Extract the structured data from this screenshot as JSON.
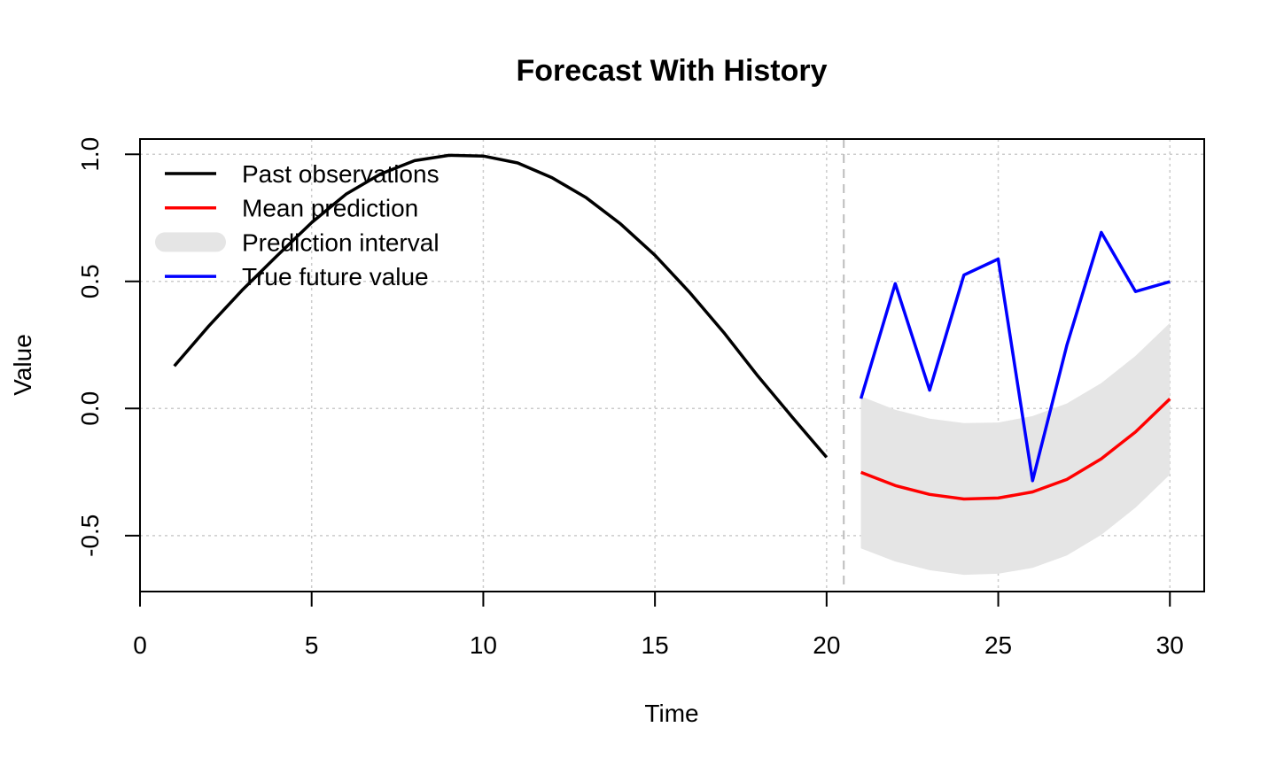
{
  "chart_data": {
    "type": "line",
    "title": "Forecast With History",
    "xlabel": "Time",
    "ylabel": "Value",
    "xlim": [
      0,
      31
    ],
    "ylim": [
      -0.72,
      1.06
    ],
    "xticks": [
      0,
      5,
      10,
      15,
      20,
      25,
      30
    ],
    "yticks": [
      -0.5,
      0.0,
      0.5,
      1.0
    ],
    "xtick_labels": [
      "0",
      "5",
      "10",
      "15",
      "20",
      "25",
      "30"
    ],
    "ytick_labels": [
      "-0.5",
      "0.0",
      "0.5",
      "1.0"
    ],
    "grid": true,
    "forecast_start_marker": 20.5,
    "legend_position": "top-left",
    "series": [
      {
        "name": "Past observations",
        "color": "#000000",
        "x": [
          1,
          2,
          3,
          4,
          5,
          6,
          7,
          8,
          9,
          10,
          11,
          12,
          13,
          14,
          15,
          16,
          17,
          18,
          19,
          20
        ],
        "values": [
          0.167,
          0.324,
          0.469,
          0.602,
          0.731,
          0.843,
          0.922,
          0.975,
          0.996,
          0.993,
          0.966,
          0.908,
          0.829,
          0.726,
          0.603,
          0.458,
          0.3,
          0.127,
          -0.034,
          -0.192
        ]
      },
      {
        "name": "Mean prediction",
        "color": "#ff0000",
        "x": [
          21,
          22,
          23,
          24,
          25,
          26,
          27,
          28,
          29,
          30
        ],
        "values": [
          -0.251,
          -0.303,
          -0.338,
          -0.356,
          -0.352,
          -0.328,
          -0.279,
          -0.198,
          -0.092,
          0.038
        ]
      },
      {
        "name": "Prediction interval",
        "color": "#e5e5e5",
        "x": [
          21,
          22,
          23,
          24,
          25,
          26,
          27,
          28,
          29,
          30
        ],
        "upper": [
          0.048,
          -0.005,
          -0.04,
          -0.057,
          -0.055,
          -0.03,
          0.02,
          0.1,
          0.207,
          0.337
        ],
        "lower": [
          -0.55,
          -0.602,
          -0.636,
          -0.654,
          -0.65,
          -0.627,
          -0.578,
          -0.497,
          -0.39,
          -0.26
        ]
      },
      {
        "name": "True future value",
        "color": "#0000ff",
        "x": [
          21,
          22,
          23,
          24,
          25,
          26,
          27,
          28,
          29,
          30
        ],
        "values": [
          0.039,
          0.491,
          0.072,
          0.525,
          0.588,
          -0.284,
          0.249,
          0.693,
          0.46,
          0.499
        ]
      }
    ]
  }
}
